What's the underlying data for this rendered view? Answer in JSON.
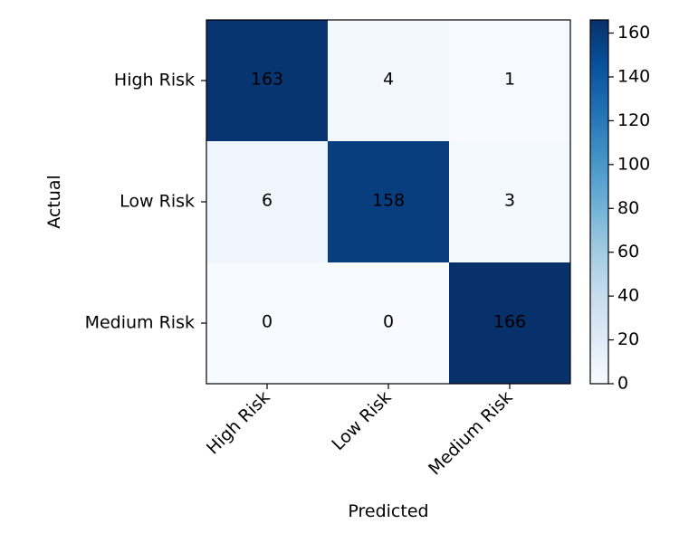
{
  "chart_data": {
    "type": "heatmap",
    "title": "",
    "xlabel": "Predicted",
    "ylabel": "Actual",
    "x_categories": [
      "High Risk",
      "Low Risk",
      "Medium Risk"
    ],
    "y_categories": [
      "High Risk",
      "Low Risk",
      "Medium Risk"
    ],
    "values": [
      [
        163,
        4,
        1
      ],
      [
        6,
        158,
        3
      ],
      [
        0,
        0,
        166
      ]
    ],
    "colorbar": {
      "colormap": "Blues",
      "range": [
        0,
        166
      ],
      "ticks": [
        0,
        20,
        40,
        60,
        80,
        100,
        120,
        140,
        160
      ]
    },
    "grid": false
  }
}
